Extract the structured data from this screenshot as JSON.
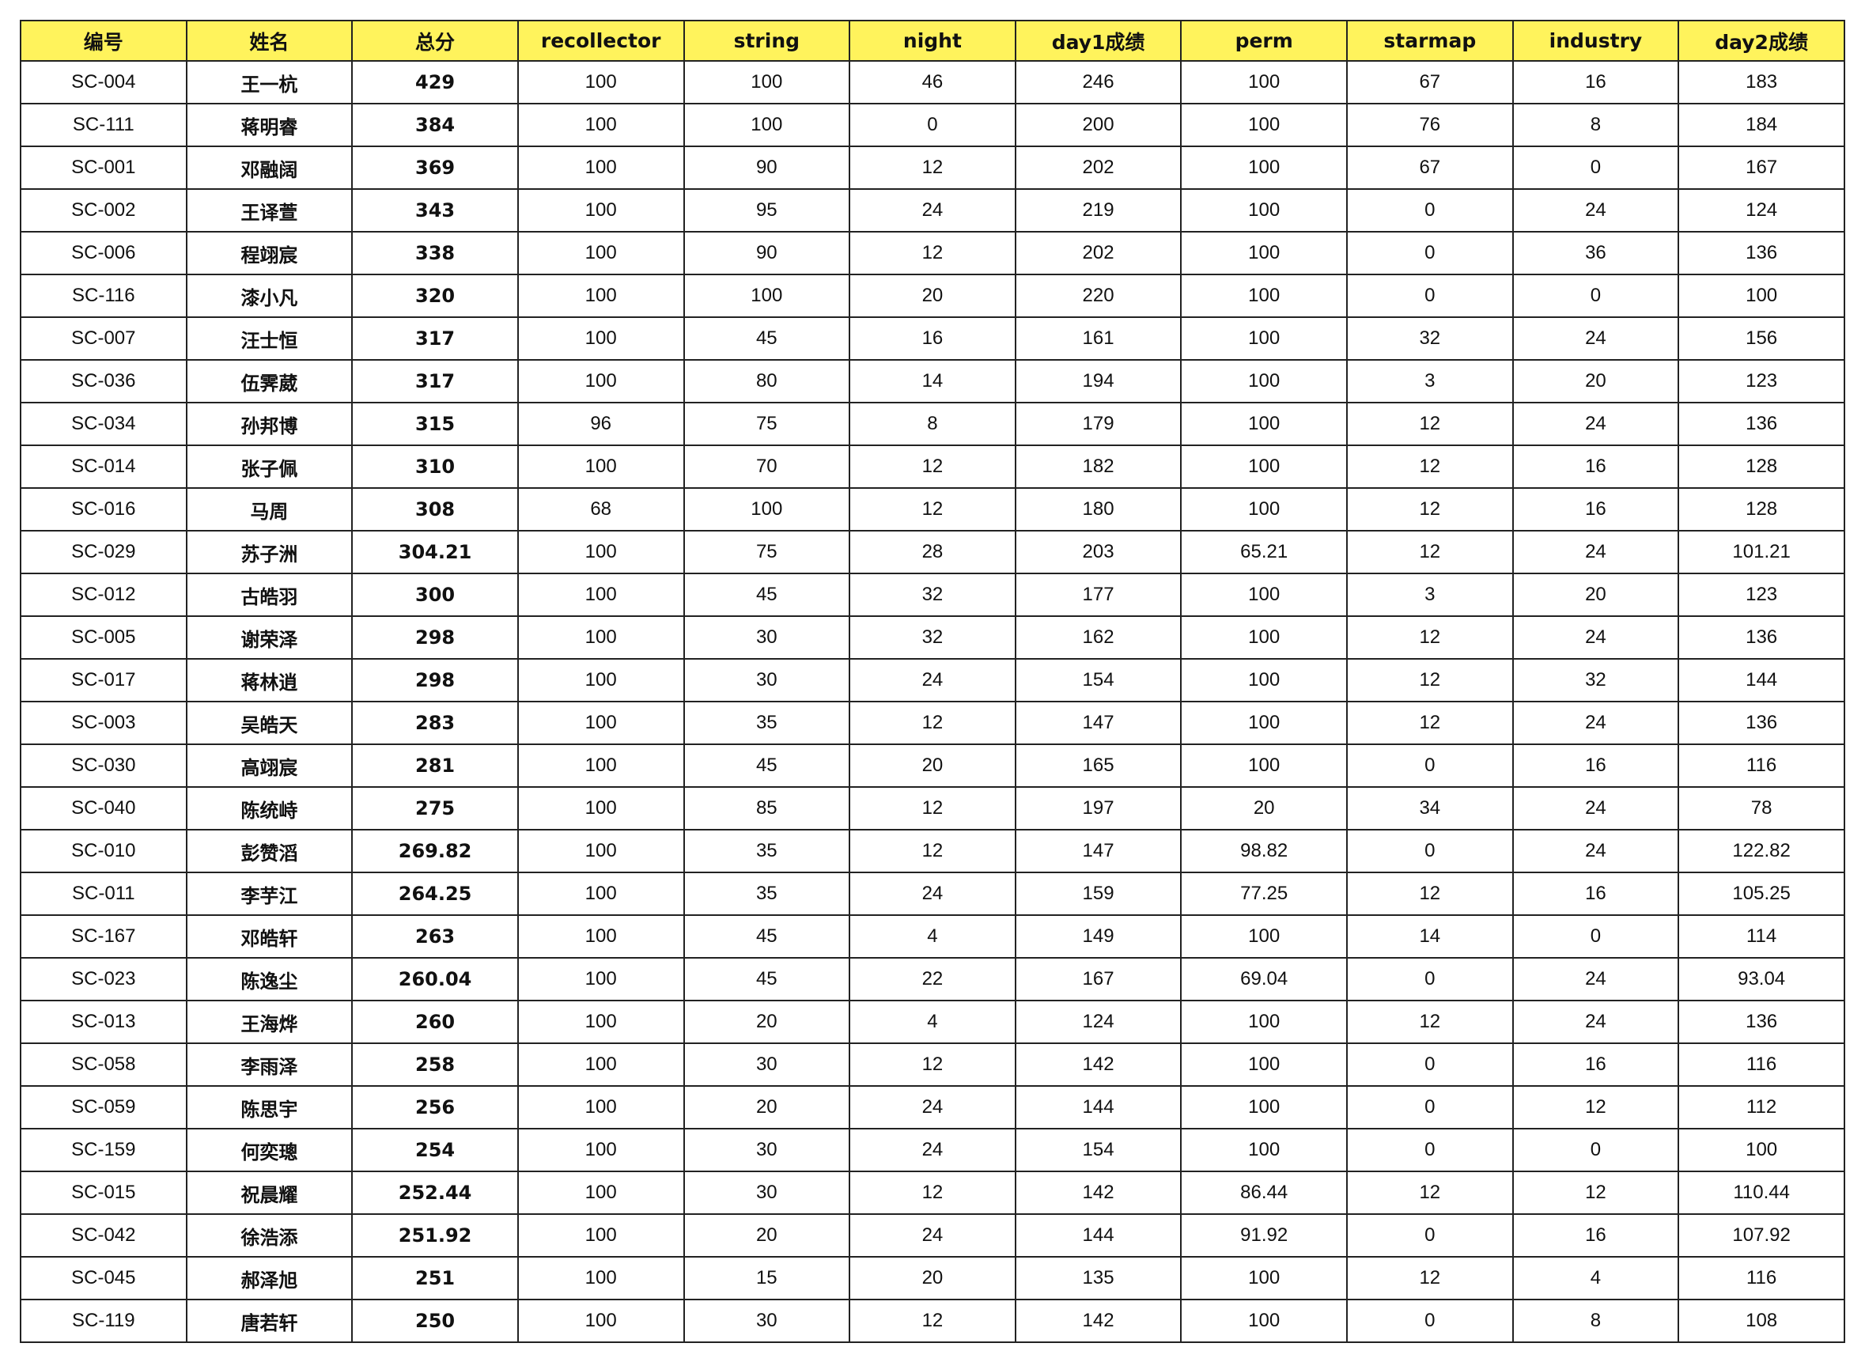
{
  "table": {
    "header_color": "#fff35c",
    "columns": [
      "编号",
      "姓名",
      "总分",
      "recollector",
      "string",
      "night",
      "day1成绩",
      "perm",
      "starmap",
      "industry",
      "day2成绩"
    ],
    "rows": [
      [
        "SC-004",
        "王一杭",
        "429",
        "100",
        "100",
        "46",
        "246",
        "100",
        "67",
        "16",
        "183"
      ],
      [
        "SC-111",
        "蒋明睿",
        "384",
        "100",
        "100",
        "0",
        "200",
        "100",
        "76",
        "8",
        "184"
      ],
      [
        "SC-001",
        "邓融阔",
        "369",
        "100",
        "90",
        "12",
        "202",
        "100",
        "67",
        "0",
        "167"
      ],
      [
        "SC-002",
        "王译萱",
        "343",
        "100",
        "95",
        "24",
        "219",
        "100",
        "0",
        "24",
        "124"
      ],
      [
        "SC-006",
        "程翊宸",
        "338",
        "100",
        "90",
        "12",
        "202",
        "100",
        "0",
        "36",
        "136"
      ],
      [
        "SC-116",
        "漆小凡",
        "320",
        "100",
        "100",
        "20",
        "220",
        "100",
        "0",
        "0",
        "100"
      ],
      [
        "SC-007",
        "汪士恒",
        "317",
        "100",
        "45",
        "16",
        "161",
        "100",
        "32",
        "24",
        "156"
      ],
      [
        "SC-036",
        "伍霁葳",
        "317",
        "100",
        "80",
        "14",
        "194",
        "100",
        "3",
        "20",
        "123"
      ],
      [
        "SC-034",
        "孙邦博",
        "315",
        "96",
        "75",
        "8",
        "179",
        "100",
        "12",
        "24",
        "136"
      ],
      [
        "SC-014",
        "张子佩",
        "310",
        "100",
        "70",
        "12",
        "182",
        "100",
        "12",
        "16",
        "128"
      ],
      [
        "SC-016",
        "马周",
        "308",
        "68",
        "100",
        "12",
        "180",
        "100",
        "12",
        "16",
        "128"
      ],
      [
        "SC-029",
        "苏子洲",
        "304.21",
        "100",
        "75",
        "28",
        "203",
        "65.21",
        "12",
        "24",
        "101.21"
      ],
      [
        "SC-012",
        "古皓羽",
        "300",
        "100",
        "45",
        "32",
        "177",
        "100",
        "3",
        "20",
        "123"
      ],
      [
        "SC-005",
        "谢荣泽",
        "298",
        "100",
        "30",
        "32",
        "162",
        "100",
        "12",
        "24",
        "136"
      ],
      [
        "SC-017",
        "蒋林逍",
        "298",
        "100",
        "30",
        "24",
        "154",
        "100",
        "12",
        "32",
        "144"
      ],
      [
        "SC-003",
        "吴皓天",
        "283",
        "100",
        "35",
        "12",
        "147",
        "100",
        "12",
        "24",
        "136"
      ],
      [
        "SC-030",
        "高翊宸",
        "281",
        "100",
        "45",
        "20",
        "165",
        "100",
        "0",
        "16",
        "116"
      ],
      [
        "SC-040",
        "陈统峙",
        "275",
        "100",
        "85",
        "12",
        "197",
        "20",
        "34",
        "24",
        "78"
      ],
      [
        "SC-010",
        "彭赞滔",
        "269.82",
        "100",
        "35",
        "12",
        "147",
        "98.82",
        "0",
        "24",
        "122.82"
      ],
      [
        "SC-011",
        "李芋江",
        "264.25",
        "100",
        "35",
        "24",
        "159",
        "77.25",
        "12",
        "16",
        "105.25"
      ],
      [
        "SC-167",
        "邓皓轩",
        "263",
        "100",
        "45",
        "4",
        "149",
        "100",
        "14",
        "0",
        "114"
      ],
      [
        "SC-023",
        "陈逸尘",
        "260.04",
        "100",
        "45",
        "22",
        "167",
        "69.04",
        "0",
        "24",
        "93.04"
      ],
      [
        "SC-013",
        "王海烨",
        "260",
        "100",
        "20",
        "4",
        "124",
        "100",
        "12",
        "24",
        "136"
      ],
      [
        "SC-058",
        "李雨泽",
        "258",
        "100",
        "30",
        "12",
        "142",
        "100",
        "0",
        "16",
        "116"
      ],
      [
        "SC-059",
        "陈思宇",
        "256",
        "100",
        "20",
        "24",
        "144",
        "100",
        "0",
        "12",
        "112"
      ],
      [
        "SC-159",
        "何奕璁",
        "254",
        "100",
        "30",
        "24",
        "154",
        "100",
        "0",
        "0",
        "100"
      ],
      [
        "SC-015",
        "祝晨耀",
        "252.44",
        "100",
        "30",
        "12",
        "142",
        "86.44",
        "12",
        "12",
        "110.44"
      ],
      [
        "SC-042",
        "徐浩添",
        "251.92",
        "100",
        "20",
        "24",
        "144",
        "91.92",
        "0",
        "16",
        "107.92"
      ],
      [
        "SC-045",
        "郝泽旭",
        "251",
        "100",
        "15",
        "20",
        "135",
        "100",
        "12",
        "4",
        "116"
      ],
      [
        "SC-119",
        "唐若轩",
        "250",
        "100",
        "30",
        "12",
        "142",
        "100",
        "0",
        "8",
        "108"
      ]
    ]
  }
}
